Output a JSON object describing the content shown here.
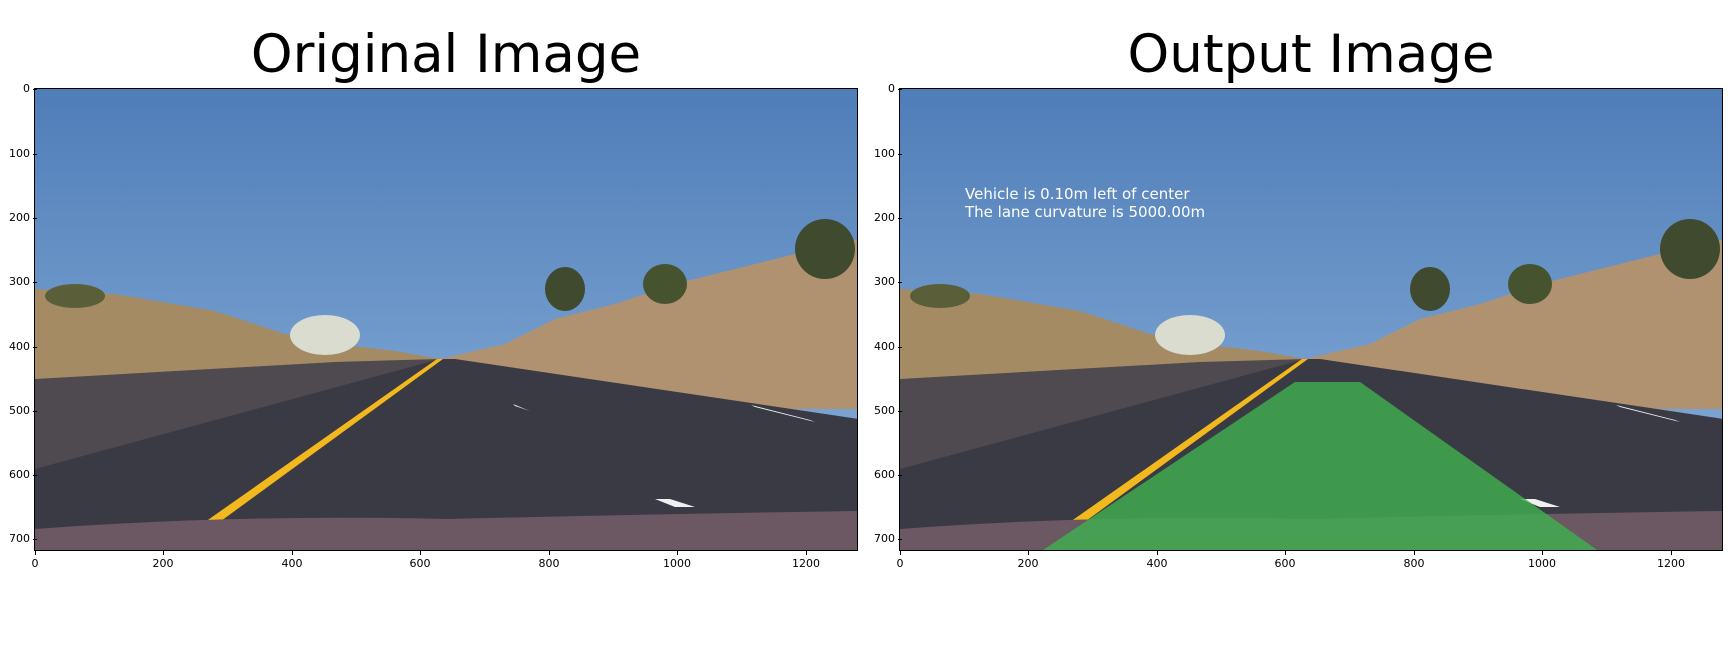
{
  "panels": [
    {
      "title": "Original Image",
      "x_ticks": [
        "0",
        "200",
        "400",
        "600",
        "800",
        "1000",
        "1200"
      ],
      "y_ticks": [
        "0",
        "100",
        "200",
        "300",
        "400",
        "500",
        "600",
        "700"
      ]
    },
    {
      "title": "Output Image",
      "x_ticks": [
        "0",
        "200",
        "400",
        "600",
        "800",
        "1000",
        "1200"
      ],
      "y_ticks": [
        "0",
        "100",
        "200",
        "300",
        "400",
        "500",
        "600",
        "700"
      ],
      "overlay": {
        "line1": "Vehicle is 0.10m left of center",
        "line2": "The lane curvature is 5000.00m"
      }
    }
  ],
  "colors": {
    "sky": "#5b88bf",
    "road": "#3a3a44",
    "hills": "#a48b63",
    "lane_fill": "#3fae4f",
    "yellow_line": "#f2b81d"
  }
}
